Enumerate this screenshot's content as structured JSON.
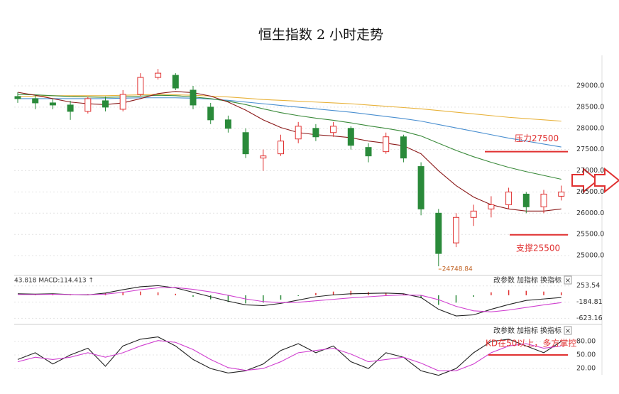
{
  "title": "恒生指数 2 小时走势",
  "chart_data": [
    {
      "type": "candlestick",
      "ylim": [
        24700,
        29720
      ],
      "yticks": [
        {
          "value": 25000,
          "label": "25000.0"
        },
        {
          "value": 25500,
          "label": "25500.0"
        },
        {
          "value": 26000,
          "label": "26000.0"
        },
        {
          "value": 26500,
          "label": "26500.0"
        },
        {
          "value": 27000,
          "label": "27000.0"
        },
        {
          "value": 27500,
          "label": "27500.0"
        },
        {
          "value": 28000,
          "label": "28000.0"
        },
        {
          "value": 28500,
          "label": "28500.0"
        },
        {
          "value": 29000,
          "label": "29000.0"
        }
      ],
      "grid": true,
      "up_color": "#e03030",
      "down_color": "#2a8a3a",
      "open": [
        28750,
        28700,
        28600,
        28550,
        28400,
        28650,
        28450,
        28800,
        29200,
        29250,
        28900,
        28500,
        28200,
        27900,
        27300,
        27400,
        27750,
        28000,
        27900,
        28000,
        27550,
        27450,
        27800,
        27100,
        26000,
        25300,
        25900,
        26100,
        26200,
        26450,
        26150,
        26400
      ],
      "high": [
        28850,
        28800,
        28700,
        28650,
        28750,
        28750,
        28900,
        29300,
        29400,
        29300,
        29000,
        28600,
        28300,
        28000,
        27500,
        27850,
        28150,
        28100,
        28150,
        28050,
        27650,
        27900,
        27850,
        27200,
        26100,
        26000,
        26200,
        26400,
        26600,
        26500,
        26550,
        26650
      ],
      "low": [
        28600,
        28450,
        28450,
        28200,
        28350,
        28400,
        28400,
        28750,
        29150,
        28900,
        28450,
        28100,
        27900,
        27300,
        27000,
        27350,
        27650,
        27700,
        27800,
        27500,
        27200,
        27400,
        27200,
        25950,
        24748.84,
        25200,
        25700,
        25900,
        26100,
        26000,
        26000,
        26300
      ],
      "close": [
        28700,
        28600,
        28550,
        28400,
        28700,
        28500,
        28800,
        29200,
        29300,
        28950,
        28550,
        28200,
        28000,
        27400,
        27350,
        27700,
        28050,
        27800,
        28050,
        27600,
        27350,
        27800,
        27300,
        26100,
        25050,
        25900,
        26050,
        26200,
        26500,
        26150,
        26450,
        26500
      ],
      "low_label": "24748.84",
      "series": [
        {
          "color": "#e8b23a",
          "values": [
            28750,
            28760,
            28770,
            28770,
            28770,
            28770,
            28780,
            28790,
            28800,
            28790,
            28780,
            28760,
            28740,
            28710,
            28680,
            28660,
            28640,
            28620,
            28600,
            28580,
            28550,
            28520,
            28490,
            28460,
            28420,
            28380,
            28340,
            28300,
            28260,
            28230,
            28200,
            28170
          ]
        },
        {
          "color": "#4a8fd0",
          "values": [
            28700,
            28700,
            28700,
            28700,
            28700,
            28700,
            28710,
            28720,
            28720,
            28720,
            28710,
            28690,
            28660,
            28620,
            28580,
            28540,
            28500,
            28460,
            28420,
            28380,
            28330,
            28280,
            28230,
            28170,
            28090,
            28010,
            27930,
            27850,
            27770,
            27700,
            27630,
            27560
          ]
        },
        {
          "color": "#3a8a3a",
          "values": [
            28800,
            28790,
            28770,
            28750,
            28740,
            28730,
            28740,
            28760,
            28780,
            28770,
            28740,
            28700,
            28640,
            28560,
            28460,
            28370,
            28300,
            28240,
            28190,
            28130,
            28060,
            28000,
            27930,
            27820,
            27650,
            27480,
            27330,
            27200,
            27080,
            26980,
            26890,
            26800
          ]
        },
        {
          "color": "#8b1a1a",
          "values": [
            28850,
            28780,
            28700,
            28620,
            28580,
            28560,
            28600,
            28700,
            28820,
            28870,
            28840,
            28760,
            28620,
            28430,
            28200,
            28020,
            27900,
            27850,
            27820,
            27780,
            27700,
            27650,
            27590,
            27400,
            27000,
            26650,
            26380,
            26200,
            26100,
            26050,
            26050,
            26100
          ]
        }
      ],
      "annotations": [
        {
          "text": "压力27500",
          "value": 27450,
          "color": "#e03030"
        },
        {
          "text": "支撑25500",
          "value": 25490,
          "color": "#e03030"
        }
      ]
    },
    {
      "type": "macd",
      "label": "43.818  MACD:114.413 ↑",
      "tools": [
        "改参数",
        "加指标",
        "换指标",
        "×"
      ],
      "ylim": [
        -770,
        440
      ],
      "yticks": [
        {
          "value": 253.54,
          "label": "253.54"
        },
        {
          "value": -184.81,
          "label": "-184.81"
        },
        {
          "value": -623.16,
          "label": "-623.16"
        }
      ],
      "up_color": "#e03030",
      "down_color": "#2a8a3a",
      "values": [
        0,
        10,
        20,
        20,
        30,
        60,
        90,
        100,
        80,
        40,
        -40,
        -110,
        -180,
        -220,
        -200,
        -120,
        -20,
        60,
        100,
        120,
        90,
        60,
        40,
        -80,
        -260,
        -200,
        -40,
        80,
        140,
        120,
        100,
        80
      ],
      "series": [
        {
          "color": "#222222",
          "values": [
            40,
            30,
            40,
            20,
            10,
            60,
            150,
            230,
            260,
            200,
            80,
            -40,
            -160,
            -260,
            -280,
            -220,
            -130,
            -40,
            10,
            40,
            50,
            60,
            40,
            -60,
            -380,
            -560,
            -530,
            -380,
            -250,
            -140,
            -100,
            -60
          ]
        },
        {
          "color": "#d040d0",
          "values": [
            20,
            20,
            25,
            20,
            15,
            30,
            80,
            150,
            200,
            210,
            160,
            90,
            0,
            -100,
            -170,
            -200,
            -190,
            -150,
            -110,
            -70,
            -40,
            -10,
            10,
            0,
            -120,
            -300,
            -420,
            -450,
            -400,
            -330,
            -260,
            -200
          ]
        }
      ]
    },
    {
      "type": "kd",
      "tools": [
        "改参数",
        "加指标",
        "换指标",
        "×"
      ],
      "ylim": [
        6,
        113
      ],
      "yticks": [
        {
          "value": 80,
          "label": "80.00"
        },
        {
          "value": 50,
          "label": "50.00"
        },
        {
          "value": 20,
          "label": "20.00"
        }
      ],
      "series": [
        {
          "color": "#222222",
          "values": [
            40,
            55,
            30,
            50,
            65,
            25,
            70,
            85,
            90,
            70,
            40,
            20,
            10,
            15,
            30,
            60,
            75,
            55,
            70,
            35,
            20,
            55,
            45,
            15,
            5,
            20,
            55,
            80,
            85,
            70,
            55,
            80
          ]
        },
        {
          "color": "#d040d0",
          "values": [
            35,
            45,
            40,
            45,
            55,
            45,
            55,
            70,
            82,
            78,
            62,
            40,
            22,
            16,
            20,
            35,
            55,
            60,
            65,
            52,
            35,
            40,
            45,
            32,
            15,
            15,
            30,
            55,
            70,
            75,
            65,
            70
          ]
        }
      ],
      "annotations": [
        {
          "text": "KD在50以上，多方掌控",
          "value": 50,
          "color": "#e03030"
        }
      ]
    }
  ]
}
